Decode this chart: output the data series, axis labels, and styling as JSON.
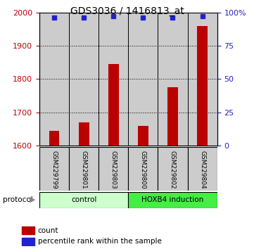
{
  "title": "GDS3036 / 1416813_at",
  "samples": [
    "GSM229799",
    "GSM229801",
    "GSM229803",
    "GSM229800",
    "GSM229802",
    "GSM229804"
  ],
  "bar_values": [
    1645,
    1670,
    1845,
    1660,
    1775,
    1960
  ],
  "percentile_values": [
    96,
    96,
    97,
    96,
    96,
    97
  ],
  "ylim_left": [
    1600,
    2000
  ],
  "ylim_right": [
    0,
    100
  ],
  "yticks_left": [
    1600,
    1700,
    1800,
    1900,
    2000
  ],
  "yticks_right": [
    0,
    25,
    50,
    75,
    100
  ],
  "bar_color": "#bb0000",
  "dot_color": "#2222cc",
  "control_color": "#ccffcc",
  "hoxb4_color": "#44ee44",
  "sample_col_color": "#cccccc",
  "title_fontsize": 10,
  "tick_fontsize": 8,
  "label_fontsize": 8
}
